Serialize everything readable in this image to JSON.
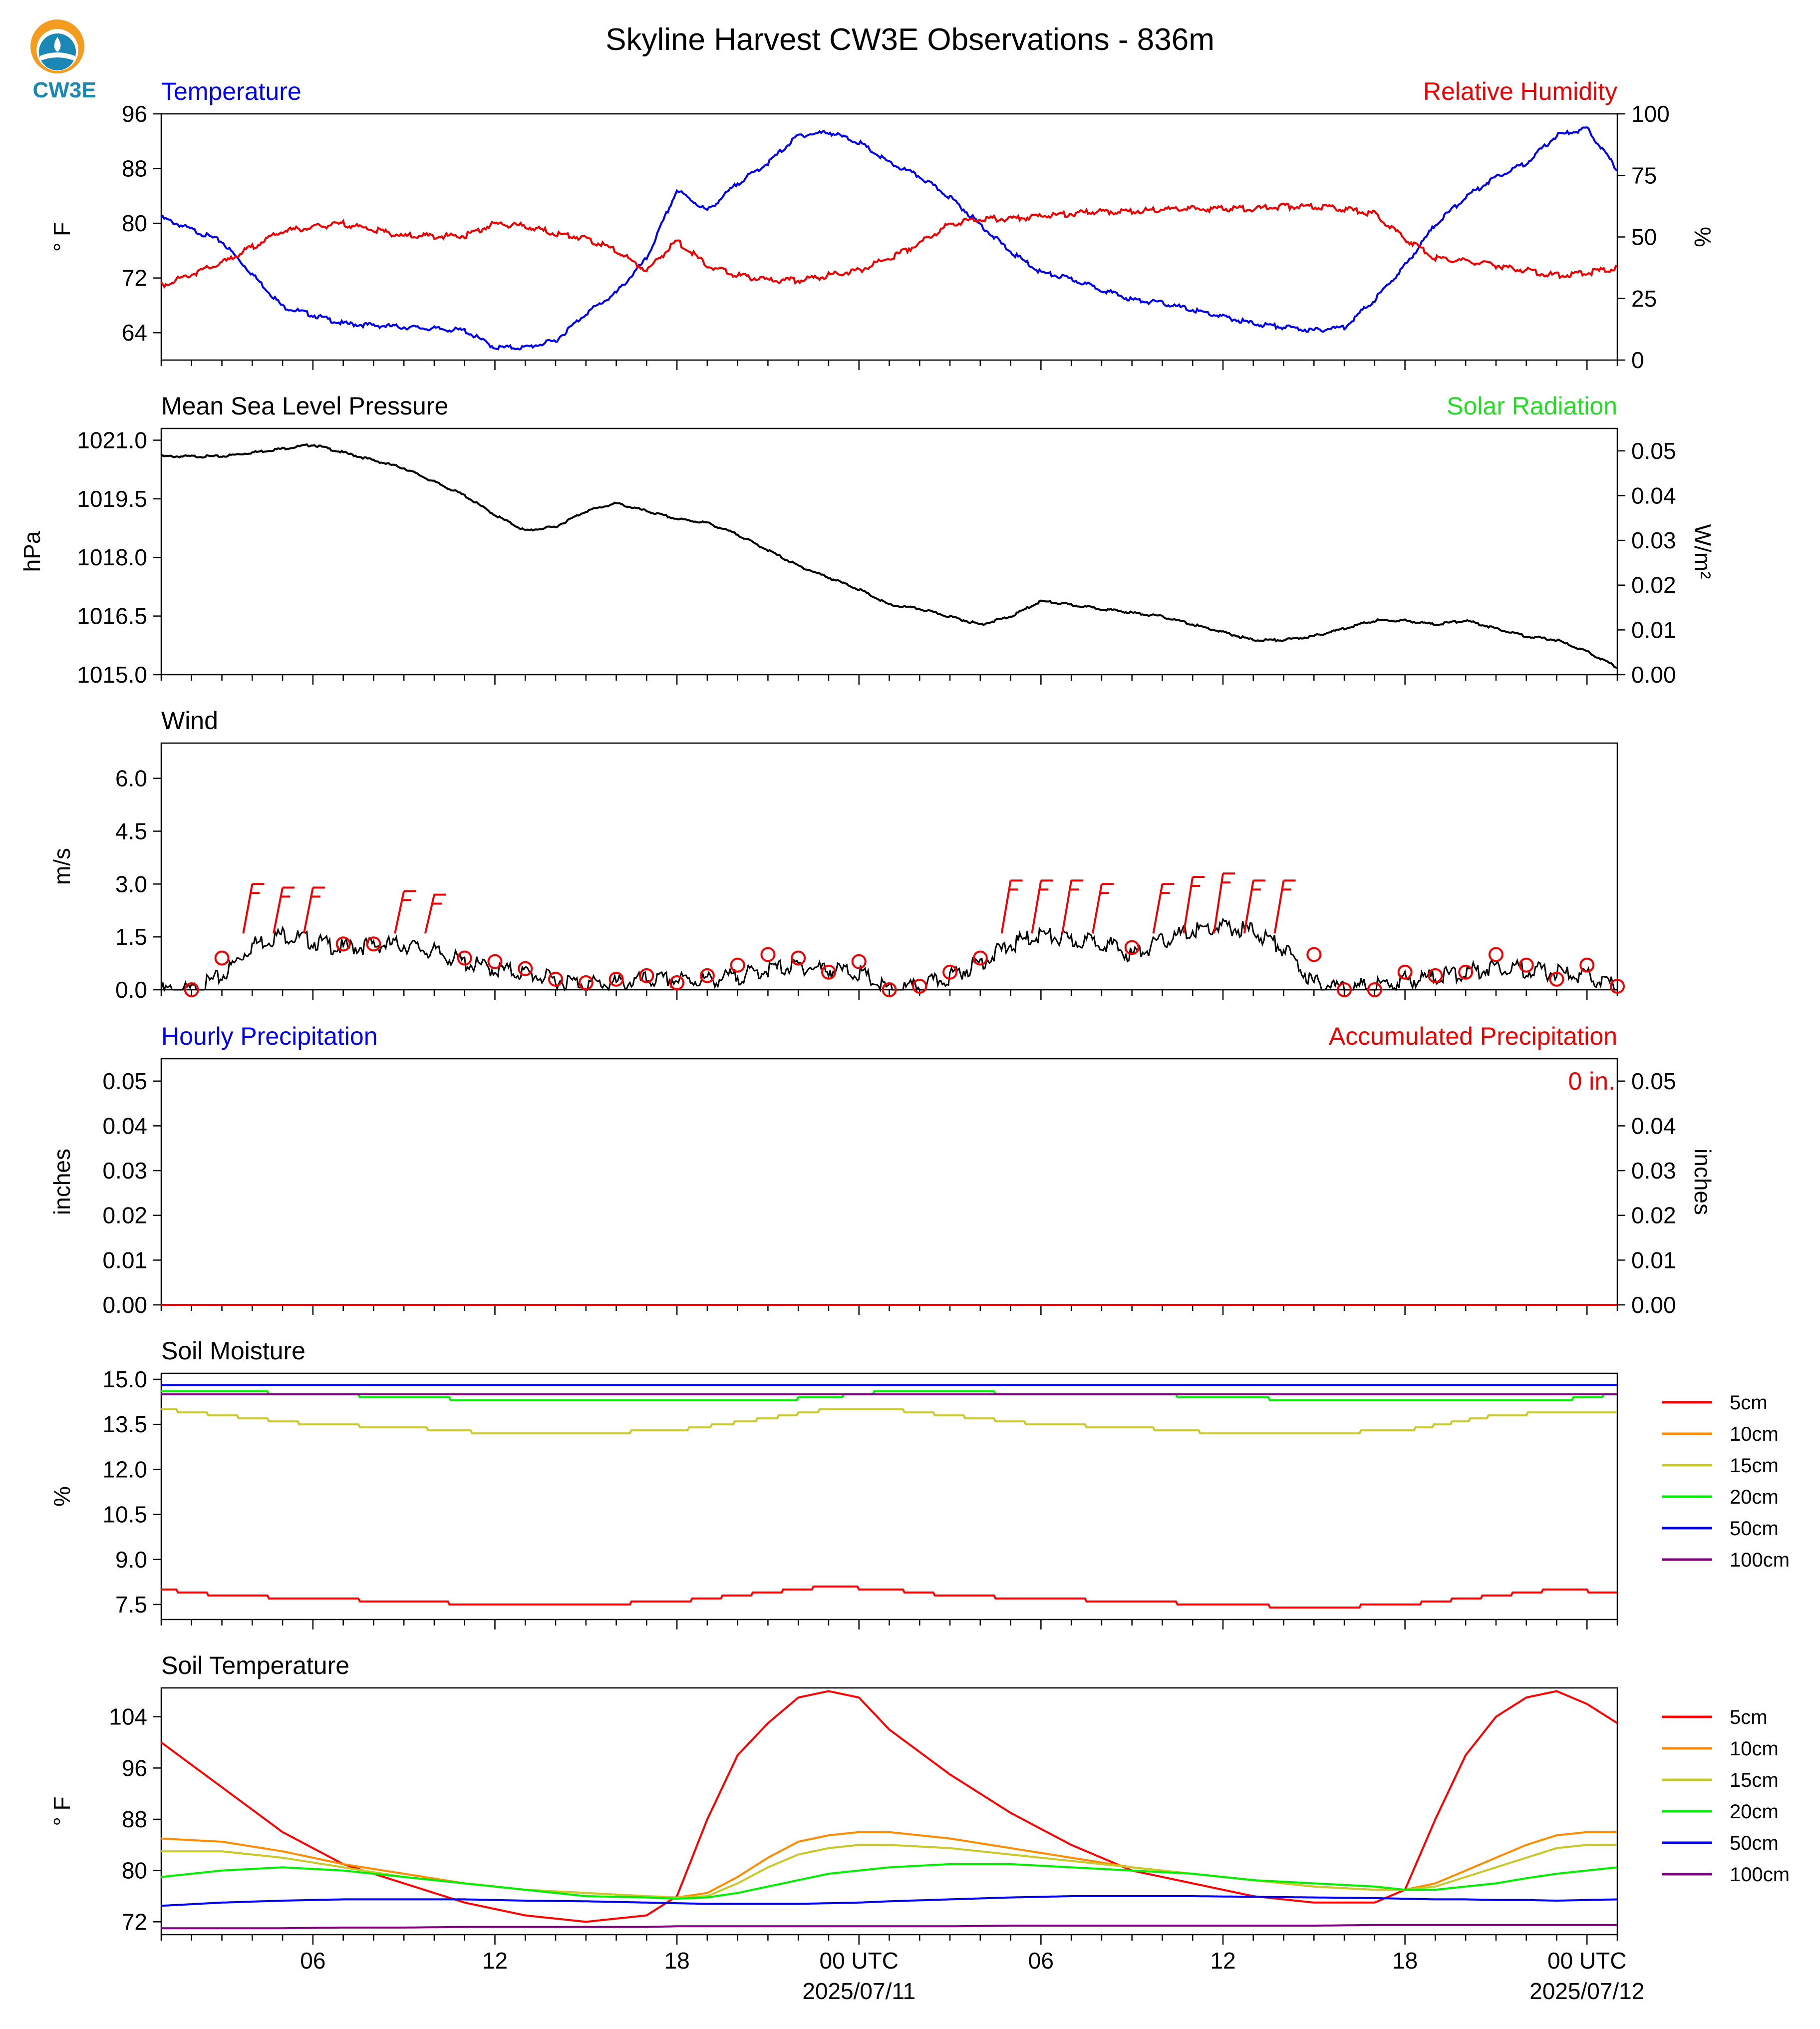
{
  "title": "Skyline Harvest CW3E Observations - 836m",
  "logo": {
    "text": "CW3E",
    "colors": [
      "#f39c1f",
      "#1a87b4",
      "#5bb3d6"
    ]
  },
  "x_axis": {
    "hour_ticks": [
      "06",
      "12",
      "18",
      "00 UTC",
      "06",
      "12",
      "18",
      "00 UTC"
    ],
    "date_labels": [
      "2025/07/11",
      "2025/07/12"
    ]
  },
  "chart_data": [
    {
      "id": "temp_rh",
      "type": "line",
      "title_left": "Temperature",
      "title_right": "Relative Humidity",
      "ylabel": "° F",
      "ylabel_right": "%",
      "ylim": [
        60,
        96
      ],
      "ylim_right": [
        0,
        100
      ],
      "yticks": [
        64,
        72,
        80,
        88,
        96
      ],
      "yticks_right": [
        0,
        25,
        50,
        75,
        100
      ],
      "x_hours": [
        1,
        3,
        5,
        7,
        9,
        11,
        12,
        13,
        14,
        15,
        16,
        17,
        18,
        19,
        20,
        21,
        22,
        23,
        24,
        25,
        26,
        27,
        28,
        29,
        30,
        31,
        32,
        33,
        34,
        35,
        36,
        37,
        38,
        39,
        40,
        41,
        42,
        43,
        44,
        45,
        46,
        47,
        48,
        49
      ],
      "series": [
        {
          "name": "Temperature",
          "color": "#0000ee",
          "axis": "left",
          "values": [
            81,
            77.5,
            68,
            65.5,
            65,
            64.5,
            62,
            62,
            63,
            67,
            70,
            75,
            85,
            82,
            86,
            89,
            93,
            93.5,
            92,
            89,
            87,
            84,
            80,
            76,
            73,
            72,
            70.5,
            69,
            68.5,
            67.5,
            66.5,
            65.5,
            65,
            64.5,
            65,
            69,
            74,
            80,
            84,
            87,
            89,
            93,
            94,
            88
          ]
        },
        {
          "name": "Relative Humidity",
          "color": "#ee0000",
          "axis": "right",
          "values": [
            31,
            40,
            53,
            56,
            51,
            51,
            56,
            55,
            52,
            50,
            45,
            37,
            49,
            39,
            35,
            33,
            33,
            35,
            37,
            42,
            48,
            56,
            58,
            58,
            59,
            60,
            61,
            61,
            62,
            62,
            62,
            62,
            63,
            63,
            62,
            60,
            50,
            42,
            41,
            39,
            37,
            35,
            36,
            38
          ]
        }
      ]
    },
    {
      "id": "pressure",
      "type": "line",
      "title_left": "Mean Sea Level Pressure",
      "title_right": "Solar Radiation",
      "ylabel": "hPa",
      "ylabel_right": "W/m²",
      "ylim": [
        1015.0,
        1021.3
      ],
      "ylim_right": [
        0,
        0.055
      ],
      "yticks": [
        1015.0,
        1016.5,
        1018.0,
        1019.5,
        1021.0
      ],
      "yticks_right": [
        0.0,
        0.01,
        0.02,
        0.03,
        0.04,
        0.05
      ],
      "x_hours": [
        1,
        3,
        5,
        6,
        7,
        9,
        11,
        12,
        13,
        14,
        15,
        16,
        17,
        18,
        19,
        20,
        21,
        22,
        23,
        24,
        25,
        26,
        27,
        28,
        29,
        30,
        31,
        32,
        33,
        34,
        35,
        36,
        37,
        38,
        39,
        40,
        41,
        42,
        43,
        44,
        45,
        46,
        47,
        48,
        49
      ],
      "series": [
        {
          "name": "Mean Sea Level Pressure",
          "color": "#000000",
          "axis": "left",
          "values": [
            1020.6,
            1020.6,
            1020.8,
            1020.9,
            1020.7,
            1020.3,
            1019.6,
            1019.1,
            1018.7,
            1018.8,
            1019.2,
            1019.4,
            1019.2,
            1019.0,
            1018.9,
            1018.6,
            1018.2,
            1017.8,
            1017.5,
            1017.2,
            1016.8,
            1016.7,
            1016.5,
            1016.3,
            1016.5,
            1016.9,
            1016.8,
            1016.7,
            1016.6,
            1016.5,
            1016.3,
            1016.1,
            1015.9,
            1015.9,
            1016.0,
            1016.2,
            1016.4,
            1016.4,
            1016.3,
            1016.4,
            1016.2,
            1016.0,
            1015.9,
            1015.6,
            1015.2
          ]
        }
      ]
    },
    {
      "id": "wind",
      "type": "line",
      "title_left": "Wind",
      "ylabel": "m/s",
      "ylim": [
        0,
        7
      ],
      "yticks": [
        0.0,
        1.5,
        3.0,
        4.5,
        6.0
      ],
      "x_hours": [
        1,
        2,
        3,
        4,
        5,
        6,
        7,
        8,
        9,
        10,
        11,
        12,
        13,
        14,
        15,
        16,
        17,
        18,
        19,
        20,
        21,
        22,
        23,
        24,
        25,
        26,
        27,
        28,
        29,
        30,
        31,
        32,
        33,
        34,
        35,
        36,
        37,
        38,
        39,
        40,
        41,
        42,
        43,
        44,
        45,
        46,
        47,
        48,
        49
      ],
      "series": [
        {
          "name": "Wind Speed",
          "color": "#000000",
          "axis": "left",
          "values": [
            0.1,
            0.1,
            0.5,
            1.4,
            1.7,
            1.5,
            1.3,
            1.4,
            1.4,
            1.2,
            0.9,
            0.7,
            0.6,
            0.4,
            0.3,
            0.3,
            0.4,
            0.4,
            0.4,
            0.5,
            0.7,
            0.8,
            0.7,
            0.6,
            0.1,
            0.2,
            0.5,
            0.9,
            1.4,
            1.7,
            1.5,
            1.5,
            1.1,
            1.5,
            1.8,
            1.9,
            1.8,
            1.3,
            0.3,
            0.2,
            0.2,
            0.4,
            0.5,
            0.6,
            0.8,
            0.7,
            0.6,
            0.5,
            0.2
          ]
        }
      ],
      "barbs": {
        "x_hours": [
          2,
          3,
          4,
          5,
          6,
          7,
          8,
          9,
          10,
          11,
          12,
          13,
          14,
          15,
          16,
          17,
          18,
          19,
          20,
          21,
          22,
          23,
          24,
          25,
          26,
          27,
          28,
          29,
          30,
          31,
          32,
          33,
          34,
          35,
          36,
          37,
          38,
          39,
          40,
          41,
          42,
          43,
          44,
          45,
          46,
          47,
          48,
          49
        ],
        "speeds": [
          0.0,
          0.9,
          2.5,
          2.4,
          2.4,
          1.3,
          1.3,
          2.3,
          2.2,
          0.9,
          0.8,
          0.6,
          0.3,
          0.2,
          0.3,
          0.4,
          0.2,
          0.4,
          0.7,
          1.0,
          0.9,
          0.5,
          0.8,
          0.0,
          0.1,
          0.5,
          0.9,
          2.6,
          2.6,
          2.6,
          2.5,
          1.2,
          2.5,
          2.7,
          2.8,
          2.6,
          2.6,
          1.0,
          0.0,
          0.0,
          0.5,
          0.4,
          0.5,
          1.0,
          0.7,
          0.3,
          0.7,
          0.1
        ]
      }
    },
    {
      "id": "precip",
      "type": "line",
      "title_left": "Hourly Precipitation",
      "title_right": "Accumulated Precipitation",
      "annotation": "0 in.",
      "ylabel": "inches",
      "ylabel_right": "inches",
      "ylim": [
        0,
        0.055
      ],
      "ylim_right": [
        0,
        0.055
      ],
      "yticks": [
        0.0,
        0.01,
        0.02,
        0.03,
        0.04,
        0.05
      ],
      "yticks_right": [
        0.0,
        0.01,
        0.02,
        0.03,
        0.04,
        0.05
      ],
      "x_hours": [
        1,
        49
      ],
      "series": [
        {
          "name": "Hourly Precipitation",
          "color": "#0000ee",
          "axis": "left",
          "values": [
            0,
            0
          ]
        },
        {
          "name": "Accumulated Precipitation",
          "color": "#ee0000",
          "axis": "right",
          "values": [
            0,
            0
          ]
        }
      ]
    },
    {
      "id": "soil_moisture",
      "type": "line",
      "title_left": "Soil Moisture",
      "ylabel": "%",
      "ylim": [
        7.0,
        15.2
      ],
      "yticks": [
        7.5,
        9.0,
        10.5,
        12.0,
        13.5,
        15.0
      ],
      "x_hours": [
        1,
        3,
        6,
        9,
        12,
        15,
        18,
        21,
        23,
        25,
        27,
        30,
        33,
        36,
        39,
        42,
        45,
        47,
        49
      ],
      "series": [
        {
          "name": "5cm",
          "color": "#ff0000",
          "values": [
            8.0,
            7.8,
            7.7,
            7.6,
            7.5,
            7.5,
            7.6,
            7.9,
            8.1,
            8.0,
            7.8,
            7.7,
            7.6,
            7.5,
            7.4,
            7.5,
            7.8,
            8.0,
            7.9
          ]
        },
        {
          "name": "10cm",
          "color": "#ff8c00",
          "values": []
        },
        {
          "name": "15cm",
          "color": "#c8c82a",
          "values": [
            14.0,
            13.8,
            13.5,
            13.4,
            13.2,
            13.2,
            13.3,
            13.7,
            14.0,
            14.0,
            13.8,
            13.5,
            13.4,
            13.2,
            13.2,
            13.3,
            13.8,
            13.9,
            13.9
          ]
        },
        {
          "name": "20cm",
          "color": "#00ee00",
          "values": [
            14.6,
            14.6,
            14.5,
            14.4,
            14.3,
            14.3,
            14.3,
            14.3,
            14.4,
            14.6,
            14.6,
            14.5,
            14.5,
            14.4,
            14.3,
            14.3,
            14.3,
            14.3,
            14.5
          ]
        },
        {
          "name": "50cm",
          "color": "#0000ee",
          "values": [
            14.8,
            14.8,
            14.8,
            14.8,
            14.8,
            14.8,
            14.8,
            14.8,
            14.8,
            14.8,
            14.8,
            14.8,
            14.8,
            14.8,
            14.8,
            14.8,
            14.8,
            14.8,
            14.8
          ]
        },
        {
          "name": "100cm",
          "color": "#800080",
          "values": [
            14.5,
            14.5,
            14.5,
            14.5,
            14.5,
            14.5,
            14.5,
            14.5,
            14.5,
            14.5,
            14.5,
            14.5,
            14.5,
            14.5,
            14.5,
            14.5,
            14.5,
            14.5,
            14.5
          ]
        }
      ],
      "legend": "right"
    },
    {
      "id": "soil_temp",
      "type": "line",
      "title_left": "Soil Temperature",
      "ylabel": "° F",
      "ylim": [
        70,
        108.5
      ],
      "yticks": [
        72,
        80,
        88,
        96,
        104
      ],
      "x_hours": [
        1,
        3,
        5,
        7,
        9,
        11,
        13,
        15,
        17,
        18,
        19,
        20,
        21,
        22,
        23,
        24,
        25,
        27,
        29,
        31,
        33,
        35,
        37,
        39,
        41,
        42,
        43,
        44,
        45,
        46,
        47,
        48,
        49
      ],
      "series": [
        {
          "name": "5cm",
          "color": "#ff0000",
          "values": [
            100,
            93,
            86,
            81,
            78,
            75,
            73,
            72,
            73,
            76,
            88,
            98,
            103,
            107,
            108,
            107,
            102,
            95,
            89,
            84,
            80,
            78,
            76,
            75,
            75,
            77,
            88,
            98,
            104,
            107,
            108,
            106,
            103
          ]
        },
        {
          "name": "10cm",
          "color": "#ff8c00",
          "values": [
            85,
            84.5,
            83,
            81,
            79.5,
            78,
            77,
            76.5,
            76,
            75.8,
            76.5,
            79,
            82,
            84.5,
            85.5,
            86,
            86,
            85,
            83.5,
            82,
            80.5,
            79.5,
            78.5,
            77.5,
            77,
            77,
            78,
            80,
            82,
            84,
            85.5,
            86,
            86
          ]
        },
        {
          "name": "15cm",
          "color": "#c8c82a",
          "values": [
            83,
            83,
            82,
            80.5,
            79,
            78,
            77,
            76.5,
            76,
            75.8,
            76,
            78,
            80.5,
            82.5,
            83.5,
            84,
            84,
            83.5,
            82.5,
            81.5,
            80.5,
            79.5,
            78.5,
            77.5,
            77,
            77,
            77.5,
            79,
            80.5,
            82,
            83.5,
            84,
            84
          ]
        },
        {
          "name": "20cm",
          "color": "#00ee00",
          "values": [
            79,
            80,
            80.5,
            80,
            79,
            78,
            77,
            76,
            75.8,
            75.6,
            75.8,
            76.5,
            77.5,
            78.5,
            79.5,
            80,
            80.5,
            81,
            81,
            80.5,
            80,
            79.5,
            78.5,
            78,
            77.5,
            77,
            77,
            77.5,
            78,
            78.8,
            79.5,
            80,
            80.5
          ]
        },
        {
          "name": "50cm",
          "color": "#0000ee",
          "values": [
            74.5,
            75,
            75.3,
            75.5,
            75.5,
            75.5,
            75.3,
            75.2,
            75,
            74.9,
            74.8,
            74.8,
            74.8,
            74.8,
            74.9,
            75,
            75.2,
            75.5,
            75.8,
            76,
            76,
            76,
            75.9,
            75.8,
            75.7,
            75.6,
            75.5,
            75.5,
            75.4,
            75.4,
            75.3,
            75.4,
            75.5
          ]
        },
        {
          "name": "100cm",
          "color": "#800080",
          "values": [
            71,
            71,
            71,
            71.1,
            71.1,
            71.2,
            71.2,
            71.2,
            71.2,
            71.3,
            71.3,
            71.3,
            71.3,
            71.3,
            71.3,
            71.3,
            71.3,
            71.3,
            71.4,
            71.4,
            71.4,
            71.4,
            71.4,
            71.4,
            71.5,
            71.5,
            71.5,
            71.5,
            71.5,
            71.5,
            71.5,
            71.5,
            71.5
          ]
        }
      ],
      "legend": "right"
    }
  ]
}
